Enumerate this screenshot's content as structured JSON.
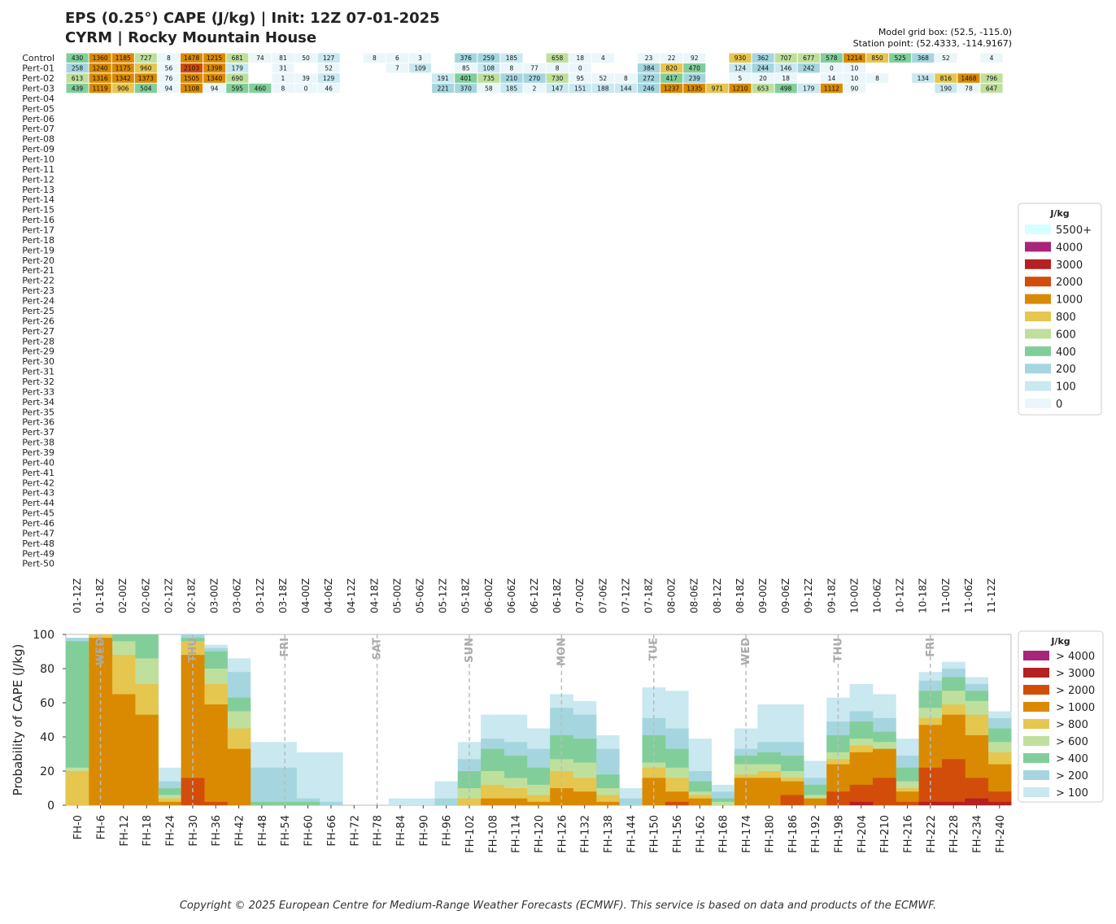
{
  "header": {
    "title_line1": "EPS (0.25°) CAPE (J/kg) | Init: 12Z 07-01-2025",
    "title_line2": "CYRM | Rocky Mountain House",
    "model_grid_box": "Model grid box: (52.5, -115.0)",
    "station_point": "Station point: (52.4333, -114.9167)"
  },
  "footer": {
    "copyright": "Copyright © 2025 European Centre for Medium-Range Weather Forecasts (ECMWF). This service is based on data and products of the ECMWF."
  },
  "chart_data": [
    {
      "type": "heatmap",
      "title": "",
      "value_unit": "J/kg",
      "rows": [
        "Control",
        "Pert-01",
        "Pert-02",
        "Pert-03",
        "Pert-04",
        "Pert-05",
        "Pert-06",
        "Pert-07",
        "Pert-08",
        "Pert-09",
        "Pert-10",
        "Pert-11",
        "Pert-12",
        "Pert-13",
        "Pert-14",
        "Pert-15",
        "Pert-16",
        "Pert-17",
        "Pert-18",
        "Pert-19",
        "Pert-20",
        "Pert-21",
        "Pert-22",
        "Pert-23",
        "Pert-24",
        "Pert-25",
        "Pert-26",
        "Pert-27",
        "Pert-28",
        "Pert-29",
        "Pert-30",
        "Pert-31",
        "Pert-32",
        "Pert-33",
        "Pert-34",
        "Pert-35",
        "Pert-36",
        "Pert-37",
        "Pert-38",
        "Pert-39",
        "Pert-40",
        "Pert-41",
        "Pert-42",
        "Pert-43",
        "Pert-44",
        "Pert-45",
        "Pert-46",
        "Pert-47",
        "Pert-48",
        "Pert-49",
        "Pert-50"
      ],
      "columns": [
        "01-12Z",
        "01-18Z",
        "02-00Z",
        "02-06Z",
        "02-12Z",
        "02-18Z",
        "03-00Z",
        "03-06Z",
        "03-12Z",
        "03-18Z",
        "04-00Z",
        "04-06Z",
        "04-12Z",
        "04-18Z",
        "05-00Z",
        "05-06Z",
        "05-12Z",
        "05-18Z",
        "06-00Z",
        "06-06Z",
        "06-12Z",
        "06-18Z",
        "07-00Z",
        "07-06Z",
        "07-12Z",
        "07-18Z",
        "08-00Z",
        "08-06Z",
        "08-12Z",
        "08-18Z",
        "09-00Z",
        "09-06Z",
        "09-12Z",
        "09-18Z",
        "10-00Z",
        "10-06Z",
        "10-12Z",
        "10-18Z",
        "11-00Z",
        "11-06Z",
        "11-12Z"
      ],
      "values_note": "cell values by row; null = blank",
      "values": [
        [
          430,
          1360,
          1185,
          727,
          8,
          1478,
          1215,
          681,
          74,
          81,
          50,
          127,
          null,
          8,
          6,
          3,
          null,
          376,
          259,
          185,
          null,
          658,
          18,
          4,
          null,
          23,
          22,
          92,
          null,
          930,
          362,
          707,
          677,
          578,
          1214,
          850,
          525,
          368,
          52,
          null,
          4
        ],
        [
          258,
          1240,
          1175,
          960,
          56,
          2103,
          1398,
          179,
          null,
          31,
          null,
          52,
          null,
          null,
          7,
          109,
          null,
          85,
          108,
          8,
          77,
          8,
          0,
          null,
          null,
          384,
          820,
          470,
          null,
          124,
          244,
          146,
          242,
          0,
          10,
          null,
          null,
          null,
          null,
          null,
          null
        ],
        [
          613,
          1316,
          1342,
          1373,
          76,
          1505,
          1340,
          690,
          null,
          1,
          39,
          129,
          null,
          null,
          null,
          null,
          191,
          401,
          735,
          210,
          270,
          730,
          95,
          52,
          8,
          272,
          417,
          239,
          null,
          5,
          20,
          18,
          null,
          14,
          10,
          8,
          null,
          134,
          816,
          1468,
          796
        ],
        [
          439,
          1119,
          906,
          504,
          94,
          1108,
          94,
          595,
          460,
          8,
          0,
          46,
          null,
          null,
          null,
          null,
          221,
          370,
          58,
          185,
          2,
          147,
          151,
          188,
          144,
          246,
          1237,
          1335,
          971,
          1210,
          653,
          498,
          179,
          1112,
          90,
          null,
          null,
          null,
          190,
          78,
          647
        ]
      ],
      "legend": {
        "title": "J/kg",
        "entries": [
          {
            "label": "5500+",
            "color": "#d6ffff"
          },
          {
            "label": "4000",
            "color": "#a72679"
          },
          {
            "label": "3000",
            "color": "#b52020"
          },
          {
            "label": "2000",
            "color": "#d24d0a"
          },
          {
            "label": "1000",
            "color": "#da8a00"
          },
          {
            "label": "800",
            "color": "#e5c64f"
          },
          {
            "label": "600",
            "color": "#bfe09d"
          },
          {
            "label": "400",
            "color": "#82ce9a"
          },
          {
            "label": "200",
            "color": "#a5d6df"
          },
          {
            "label": "100",
            "color": "#c9e8f0"
          },
          {
            "label": "0",
            "color": "#eaf6fa"
          }
        ]
      }
    },
    {
      "type": "area",
      "ylabel": "Probability of CAPE (J/kg)",
      "xlabel": "",
      "ylim": [
        0,
        100
      ],
      "categories": [
        "FH-0",
        "FH-6",
        "FH-12",
        "FH-18",
        "FH-24",
        "FH-30",
        "FH-36",
        "FH-42",
        "FH-48",
        "FH-54",
        "FH-60",
        "FH-66",
        "FH-72",
        "FH-78",
        "FH-84",
        "FH-90",
        "FH-96",
        "FH-102",
        "FH-108",
        "FH-114",
        "FH-120",
        "FH-126",
        "FH-132",
        "FH-138",
        "FH-144",
        "FH-150",
        "FH-156",
        "FH-162",
        "FH-168",
        "FH-174",
        "FH-180",
        "FH-186",
        "FH-192",
        "FH-198",
        "FH-204",
        "FH-210",
        "FH-216",
        "FH-222",
        "FH-228",
        "FH-234",
        "FH-240"
      ],
      "series": [
        {
          "name": "> 100",
          "color": "#c9e8f0",
          "values": [
            98,
            100,
            100,
            100,
            22,
            100,
            94,
            86,
            37,
            37,
            31,
            31,
            0,
            0,
            4,
            4,
            14,
            37,
            53,
            53,
            45,
            65,
            61,
            41,
            10,
            69,
            67,
            39,
            12,
            45,
            59,
            59,
            26,
            63,
            71,
            65,
            39,
            78,
            84,
            75,
            55
          ]
        },
        {
          "name": "> 200",
          "color": "#a5d6df",
          "values": [
            98,
            100,
            100,
            100,
            14,
            100,
            92,
            78,
            22,
            22,
            4,
            2,
            0,
            0,
            0,
            0,
            4,
            27,
            39,
            37,
            33,
            57,
            53,
            33,
            4,
            51,
            45,
            20,
            8,
            33,
            37,
            37,
            16,
            49,
            55,
            51,
            29,
            73,
            80,
            71,
            51
          ]
        },
        {
          "name": "> 400",
          "color": "#82ce9a",
          "values": [
            96,
            100,
            100,
            100,
            10,
            98,
            90,
            63,
            2,
            2,
            2,
            0,
            0,
            0,
            0,
            0,
            0,
            20,
            33,
            29,
            22,
            41,
            39,
            18,
            0,
            41,
            33,
            14,
            4,
            29,
            31,
            29,
            12,
            41,
            49,
            43,
            22,
            67,
            75,
            67,
            45
          ]
        },
        {
          "name": "> 600",
          "color": "#bfe09d",
          "values": [
            22,
            100,
            96,
            86,
            6,
            96,
            80,
            55,
            0,
            0,
            0,
            0,
            0,
            0,
            0,
            0,
            0,
            10,
            20,
            16,
            12,
            27,
            25,
            10,
            0,
            25,
            22,
            8,
            2,
            24,
            24,
            20,
            6,
            31,
            39,
            37,
            14,
            57,
            67,
            61,
            37
          ]
        },
        {
          "name": "> 800",
          "color": "#e5c64f",
          "values": [
            20,
            100,
            88,
            71,
            4,
            96,
            71,
            45,
            0,
            0,
            0,
            0,
            0,
            0,
            0,
            0,
            0,
            4,
            12,
            10,
            6,
            20,
            16,
            6,
            0,
            22,
            16,
            6,
            0,
            18,
            20,
            16,
            4,
            27,
            35,
            33,
            10,
            51,
            59,
            53,
            31
          ]
        },
        {
          "name": "> 1000",
          "color": "#da8a00",
          "values": [
            0,
            98,
            65,
            53,
            2,
            88,
            59,
            33,
            0,
            0,
            0,
            0,
            0,
            0,
            0,
            0,
            0,
            0,
            4,
            4,
            2,
            10,
            8,
            2,
            0,
            16,
            8,
            4,
            0,
            16,
            16,
            14,
            4,
            24,
            31,
            33,
            8,
            47,
            53,
            41,
            24
          ]
        },
        {
          "name": "> 2000",
          "color": "#d24d0a",
          "values": [
            0,
            0,
            0,
            0,
            0,
            16,
            2,
            0,
            0,
            0,
            0,
            0,
            0,
            0,
            0,
            0,
            0,
            0,
            0,
            0,
            0,
            0,
            0,
            0,
            0,
            0,
            2,
            0,
            0,
            0,
            0,
            6,
            0,
            8,
            12,
            16,
            2,
            22,
            27,
            16,
            8
          ]
        },
        {
          "name": "> 3000",
          "color": "#b52020",
          "values": [
            0,
            0,
            0,
            0,
            0,
            0,
            0,
            0,
            0,
            0,
            0,
            0,
            0,
            0,
            0,
            0,
            0,
            0,
            0,
            0,
            0,
            0,
            0,
            0,
            0,
            0,
            0,
            0,
            0,
            0,
            0,
            0,
            0,
            0,
            2,
            0,
            0,
            2,
            2,
            4,
            2
          ]
        },
        {
          "name": "> 4000",
          "color": "#a72679",
          "values": [
            0,
            0,
            0,
            0,
            0,
            0,
            0,
            0,
            0,
            0,
            0,
            0,
            0,
            0,
            0,
            0,
            0,
            0,
            0,
            0,
            0,
            0,
            0,
            0,
            0,
            0,
            0,
            0,
            0,
            0,
            0,
            0,
            0,
            0,
            0,
            0,
            0,
            0,
            0,
            0,
            0
          ]
        }
      ],
      "day_markers": [
        {
          "label": "WED",
          "x": 9
        },
        {
          "label": "THU",
          "x": 33
        },
        {
          "label": "FRI",
          "x": 57
        },
        {
          "label": "SAT",
          "x": 81
        },
        {
          "label": "SUN",
          "x": 105
        },
        {
          "label": "MON",
          "x": 129
        },
        {
          "label": "TUE",
          "x": 153
        },
        {
          "label": "WED",
          "x": 177
        },
        {
          "label": "THU",
          "x": 201
        },
        {
          "label": "FRI",
          "x": 225
        }
      ],
      "yticks": [
        0,
        20,
        40,
        60,
        80,
        100
      ],
      "legend": {
        "title": "J/kg",
        "entries": [
          {
            "label": "> 4000",
            "color": "#a72679"
          },
          {
            "label": "> 3000",
            "color": "#b52020"
          },
          {
            "label": "> 2000",
            "color": "#d24d0a"
          },
          {
            "label": "> 1000",
            "color": "#da8a00"
          },
          {
            "label": "> 800",
            "color": "#e5c64f"
          },
          {
            "label": "> 600",
            "color": "#bfe09d"
          },
          {
            "label": "> 400",
            "color": "#82ce9a"
          },
          {
            "label": "> 200",
            "color": "#a5d6df"
          },
          {
            "label": "> 100",
            "color": "#c9e8f0"
          }
        ]
      }
    }
  ]
}
